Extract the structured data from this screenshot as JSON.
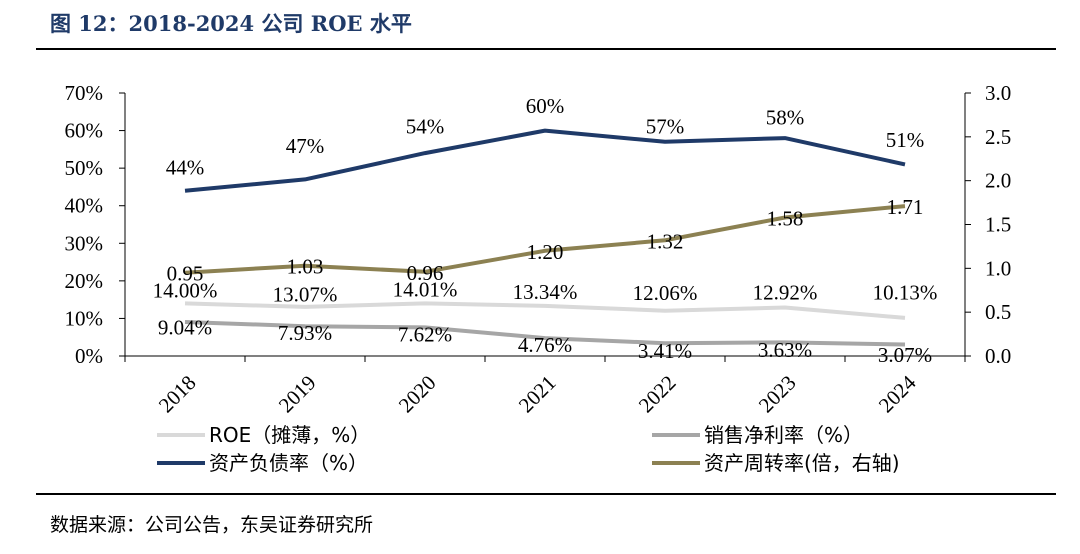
{
  "header": {
    "title": "图 12：2018-2024 公司 ROE 水平"
  },
  "footer": {
    "source": "数据来源：公司公告，东吴证券研究所"
  },
  "chart_data": {
    "type": "line",
    "categories": [
      "2018",
      "2019",
      "2020",
      "2021",
      "2022",
      "2023",
      "2024"
    ],
    "y_left": {
      "ticks": [
        "0%",
        "10%",
        "20%",
        "30%",
        "40%",
        "50%",
        "60%",
        "70%"
      ],
      "range": [
        0,
        70
      ]
    },
    "y_right": {
      "ticks": [
        "0.0",
        "0.5",
        "1.0",
        "1.5",
        "2.0",
        "2.5",
        "3.0"
      ],
      "range": [
        0,
        3.0
      ]
    },
    "series": [
      {
        "key": "roe",
        "name": "ROE（摊薄，%）",
        "axis": "left",
        "color": "#d9d9d9",
        "values": [
          14.0,
          13.07,
          14.01,
          13.34,
          12.06,
          12.92,
          10.13
        ],
        "labels": [
          "14.00%",
          "13.07%",
          "14.01%",
          "13.34%",
          "12.06%",
          "12.92%",
          "10.13%"
        ]
      },
      {
        "key": "net_margin",
        "name": "销售净利率（%）",
        "axis": "left",
        "color": "#a6a6a6",
        "values": [
          9.04,
          7.93,
          7.62,
          4.76,
          3.41,
          3.63,
          3.07
        ],
        "labels": [
          "9.04%",
          "7.93%",
          "7.62%",
          "4.76%",
          "3.41%",
          "3.63%",
          "3.07%"
        ]
      },
      {
        "key": "debt_ratio",
        "name": "资产负债率（%）",
        "axis": "left",
        "color": "#1f3a68",
        "values": [
          44,
          47,
          54,
          60,
          57,
          58,
          51
        ],
        "labels": [
          "44%",
          "47%",
          "54%",
          "60%",
          "57%",
          "58%",
          "51%"
        ]
      },
      {
        "key": "turnover",
        "name": "资产周转率(倍，右轴)",
        "axis": "right",
        "color": "#8c8152",
        "values": [
          0.95,
          1.03,
          0.96,
          1.2,
          1.32,
          1.58,
          1.71
        ],
        "labels": [
          "0.95",
          "1.03",
          "0.96",
          "1.20",
          "1.32",
          "1.58",
          "1.71"
        ]
      }
    ],
    "legend_position": "bottom",
    "grid": false
  }
}
